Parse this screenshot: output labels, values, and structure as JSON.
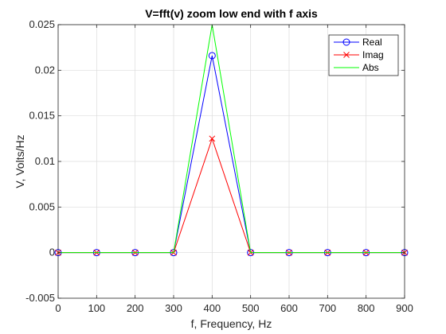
{
  "chart_data": {
    "type": "line",
    "title": "V=fft(v) zoom low end with f axis",
    "xlabel": "f, Frequency, Hz",
    "ylabel": "V, Volts/Hz",
    "xlim": [
      0,
      900
    ],
    "ylim": [
      -0.005,
      0.025
    ],
    "x_ticks": [
      0,
      100,
      200,
      300,
      400,
      500,
      600,
      700,
      800,
      900
    ],
    "x_tick_labels": [
      "0",
      "100",
      "200",
      "300",
      "400",
      "500",
      "600",
      "700",
      "800",
      "900"
    ],
    "y_ticks": [
      -0.005,
      0,
      0.005,
      0.01,
      0.015,
      0.02,
      0.025
    ],
    "y_tick_labels": [
      "-0.005",
      "0",
      "0.005",
      "0.01",
      "0.015",
      "0.02",
      "0.025"
    ],
    "grid": true,
    "legend_position": "top-right",
    "x": [
      0,
      100,
      200,
      300,
      400,
      500,
      600,
      700,
      800,
      900
    ],
    "series": [
      {
        "name": "Real",
        "color": "#0000ff",
        "marker": "circle",
        "values": [
          0,
          0,
          0,
          0,
          0.0216,
          0,
          0,
          0,
          0,
          0
        ]
      },
      {
        "name": "Imag",
        "color": "#ff0000",
        "marker": "x",
        "values": [
          0,
          0,
          0,
          0,
          0.0125,
          0,
          0,
          0,
          0,
          0
        ]
      },
      {
        "name": "Abs",
        "color": "#00ff00",
        "marker": "none",
        "values": [
          0,
          0,
          0,
          0,
          0.025,
          0,
          0,
          0,
          0,
          0
        ]
      }
    ]
  }
}
